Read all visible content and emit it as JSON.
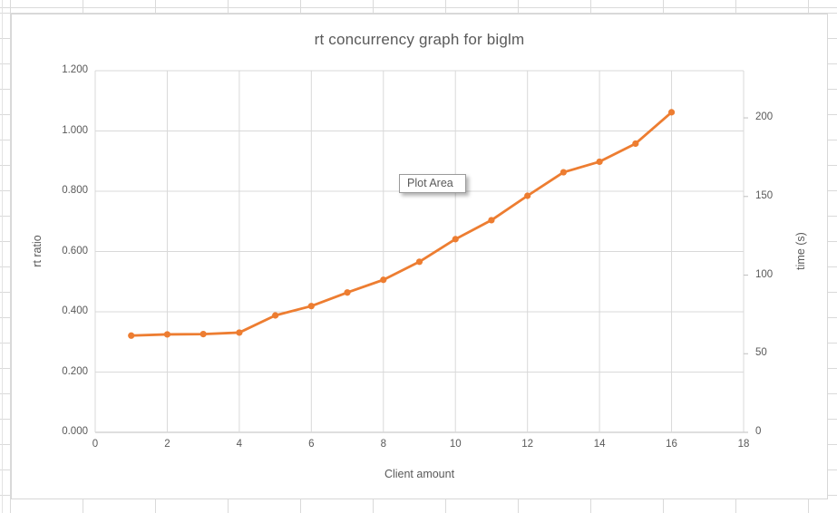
{
  "app": {
    "context": "spreadsheet-embedded-chart",
    "tooltip_label": "Plot Area"
  },
  "colors": {
    "series_orange": "#ED7D31",
    "gridline": "#D9D9D9",
    "axis_line": "#BFBFBF",
    "text_gray": "#595959",
    "cell_grid": "#DADADA",
    "tooltip_border": "#9B9B9B"
  },
  "chart_data": {
    "type": "line",
    "title": "rt concurrency graph for biglm",
    "xlabel": "Client amount",
    "ylabel_left": "rt ratio",
    "ylabel_right": "time (s)",
    "grid": true,
    "legend": "none",
    "x": [
      1,
      2,
      3,
      4,
      5,
      6,
      7,
      8,
      9,
      10,
      11,
      12,
      13,
      14,
      15,
      16
    ],
    "series": [
      {
        "name": "rt ratio vs client amount",
        "color": "#ED7D31",
        "axis": "left",
        "values": [
          0.321,
          0.325,
          0.326,
          0.331,
          0.388,
          0.419,
          0.464,
          0.506,
          0.566,
          0.641,
          0.704,
          0.785,
          0.863,
          0.898,
          0.958,
          1.062
        ]
      }
    ],
    "x_axis": {
      "min": 0,
      "max": 18,
      "tick_step": 2,
      "ticks": [
        0,
        2,
        4,
        6,
        8,
        10,
        12,
        14,
        16,
        18
      ]
    },
    "y_axis_left": {
      "min": 0.0,
      "max": 1.2,
      "tick_step": 0.2,
      "ticks": [
        0.0,
        0.2,
        0.4,
        0.6,
        0.8,
        1.0,
        1.2
      ],
      "tick_format_decimals": 3
    },
    "y_axis_right": {
      "min": 0,
      "max": 230,
      "ticks": [
        0,
        50,
        100,
        150,
        200
      ]
    }
  }
}
